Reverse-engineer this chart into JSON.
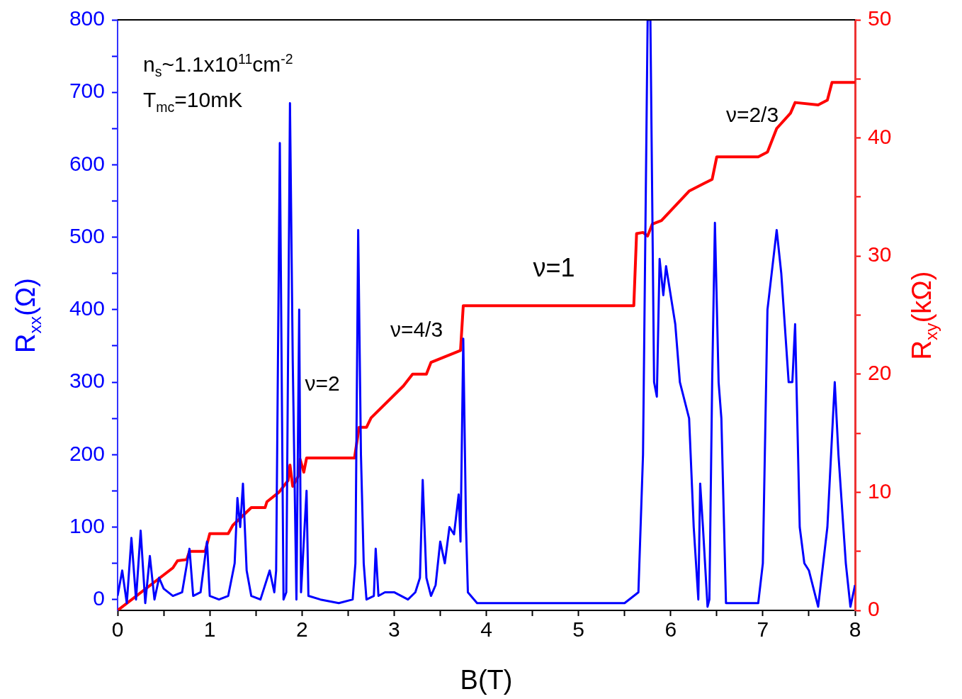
{
  "chart_data": {
    "type": "line",
    "xlabel": "B(T)",
    "ylabel": "R$_{xx}$(Ω)",
    "y2label": "R$_{xy}$(kΩ)",
    "xlim": [
      0,
      8
    ],
    "xticks": [
      0,
      {
        "value": 0.5,
        "label": null
      },
      1,
      {
        "value": 1.5,
        "label": null
      },
      2,
      {
        "value": 2.5,
        "label": null
      },
      3,
      {
        "value": 3.5,
        "label": null
      },
      4,
      {
        "value": 4.5,
        "label": null
      },
      5,
      {
        "value": 5.5,
        "label": null
      },
      6,
      {
        "value": 6.5,
        "label": null
      },
      7,
      {
        "value": 7.5,
        "label": null
      },
      8
    ],
    "ylim": [
      -15,
      800
    ],
    "yticks": [
      0,
      {
        "value": 50,
        "label": null
      },
      100,
      {
        "value": 150,
        "label": null
      },
      200,
      {
        "value": 250,
        "label": null
      },
      300,
      {
        "value": 350,
        "label": null
      },
      400,
      {
        "value": 450,
        "label": null
      },
      500,
      {
        "value": 550,
        "label": null
      },
      600,
      {
        "value": 650,
        "label": null
      },
      700,
      {
        "value": 750,
        "label": null
      },
      800
    ],
    "y2lim": [
      0,
      50
    ],
    "y2ticks": [
      0,
      {
        "value": 5,
        "label": null
      },
      10,
      {
        "value": 15,
        "label": null
      },
      20,
      {
        "value": 25,
        "label": null
      },
      30,
      {
        "value": 35,
        "label": null
      },
      40,
      {
        "value": 45,
        "label": null
      },
      50
    ],
    "grid": false,
    "legend": false,
    "marker": "none",
    "line_style": "solid",
    "series": [
      {
        "color": "#0000ff",
        "x": [
          0,
          0.05,
          0.1,
          0.15,
          0.2,
          0.25,
          0.3,
          0.35,
          0.4,
          0.45,
          0.5,
          0.6,
          0.7,
          0.78,
          0.82,
          0.9,
          0.97,
          1.0,
          1.1,
          1.2,
          1.27,
          1.3,
          1.33,
          1.36,
          1.4,
          1.45,
          1.55,
          1.65,
          1.7,
          1.72,
          1.76,
          1.8,
          1.83,
          1.87,
          1.9,
          1.94,
          1.97,
          1.99,
          2.05,
          2.07,
          2.2,
          2.4,
          2.55,
          2.58,
          2.61,
          2.64,
          2.67,
          2.7,
          2.78,
          2.8,
          2.83,
          2.9,
          3.0,
          3.15,
          3.23,
          3.28,
          3.31,
          3.35,
          3.4,
          3.45,
          3.5,
          3.55,
          3.6,
          3.65,
          3.7,
          3.72,
          3.75,
          3.78,
          3.8,
          3.9,
          4.5,
          5.0,
          5.5,
          5.65,
          5.7,
          5.75,
          5.78,
          5.82,
          5.85,
          5.88,
          5.92,
          5.95,
          6.05,
          6.1,
          6.2,
          6.25,
          6.3,
          6.32,
          6.35,
          6.4,
          6.42,
          6.45,
          6.48,
          6.52,
          6.55,
          6.6,
          6.95,
          7.0,
          7.05,
          7.15,
          7.2,
          7.28,
          7.32,
          7.35,
          7.4,
          7.45,
          7.5,
          7.6,
          7.7,
          7.78,
          7.82,
          7.9,
          7.95,
          8.0
        ],
        "values": [
          5,
          40,
          -5,
          85,
          0,
          95,
          -5,
          60,
          0,
          30,
          15,
          5,
          10,
          70,
          5,
          10,
          80,
          5,
          0,
          5,
          50,
          140,
          100,
          160,
          40,
          5,
          0,
          40,
          10,
          40,
          630,
          0,
          10,
          685,
          330,
          0,
          400,
          10,
          150,
          5,
          0,
          -5,
          0,
          50,
          510,
          200,
          50,
          0,
          5,
          70,
          5,
          10,
          10,
          0,
          10,
          30,
          165,
          30,
          5,
          20,
          80,
          50,
          100,
          90,
          145,
          80,
          360,
          100,
          10,
          -5,
          -5,
          -5,
          -5,
          10,
          200,
          800,
          800,
          300,
          280,
          470,
          420,
          460,
          380,
          300,
          250,
          100,
          0,
          160,
          100,
          -10,
          0,
          300,
          520,
          300,
          250,
          -5,
          -5,
          50,
          400,
          510,
          450,
          300,
          300,
          380,
          100,
          50,
          40,
          -10,
          100,
          300,
          200,
          50,
          -10,
          20
        ]
      },
      {
        "color": "#ff0000",
        "axis": "y2",
        "x": [
          0,
          0.6,
          0.65,
          0.75,
          0.78,
          0.95,
          1.0,
          1.2,
          1.25,
          1.45,
          1.6,
          1.62,
          1.75,
          1.85,
          1.87,
          1.9,
          1.97,
          1.98,
          2.02,
          2.05,
          2.57,
          2.62,
          2.7,
          2.75,
          3.1,
          3.2,
          3.35,
          3.4,
          3.72,
          3.75,
          5.6,
          5.63,
          5.7,
          5.75,
          5.8,
          5.9,
          6.2,
          6.35,
          6.45,
          6.5,
          6.95,
          7.05,
          7.15,
          7.3,
          7.35,
          7.6,
          7.7,
          7.75,
          8.0
        ],
        "values": [
          0,
          3.6,
          4.2,
          4.3,
          5.0,
          5.0,
          6.5,
          6.5,
          7.2,
          8.7,
          8.7,
          9.2,
          10.0,
          11.0,
          12.3,
          10.5,
          11.5,
          12.8,
          11.7,
          12.9,
          12.9,
          15.5,
          15.5,
          16.3,
          19.0,
          20.0,
          20.0,
          21.0,
          22.0,
          25.8,
          25.8,
          31.9,
          32.0,
          31.7,
          32.7,
          33.0,
          35.5,
          36.1,
          36.5,
          38.4,
          38.4,
          38.8,
          40.8,
          42.1,
          43.0,
          42.8,
          43.2,
          44.7,
          44.7
        ]
      }
    ],
    "annotations": [
      "n$_{s}$~1.1x10$^{11}$cm$^{-2}$",
      "T$_{mc}$=10mK",
      "ν=2",
      "ν=4/3",
      "ν=1",
      "ν=2/3"
    ]
  }
}
